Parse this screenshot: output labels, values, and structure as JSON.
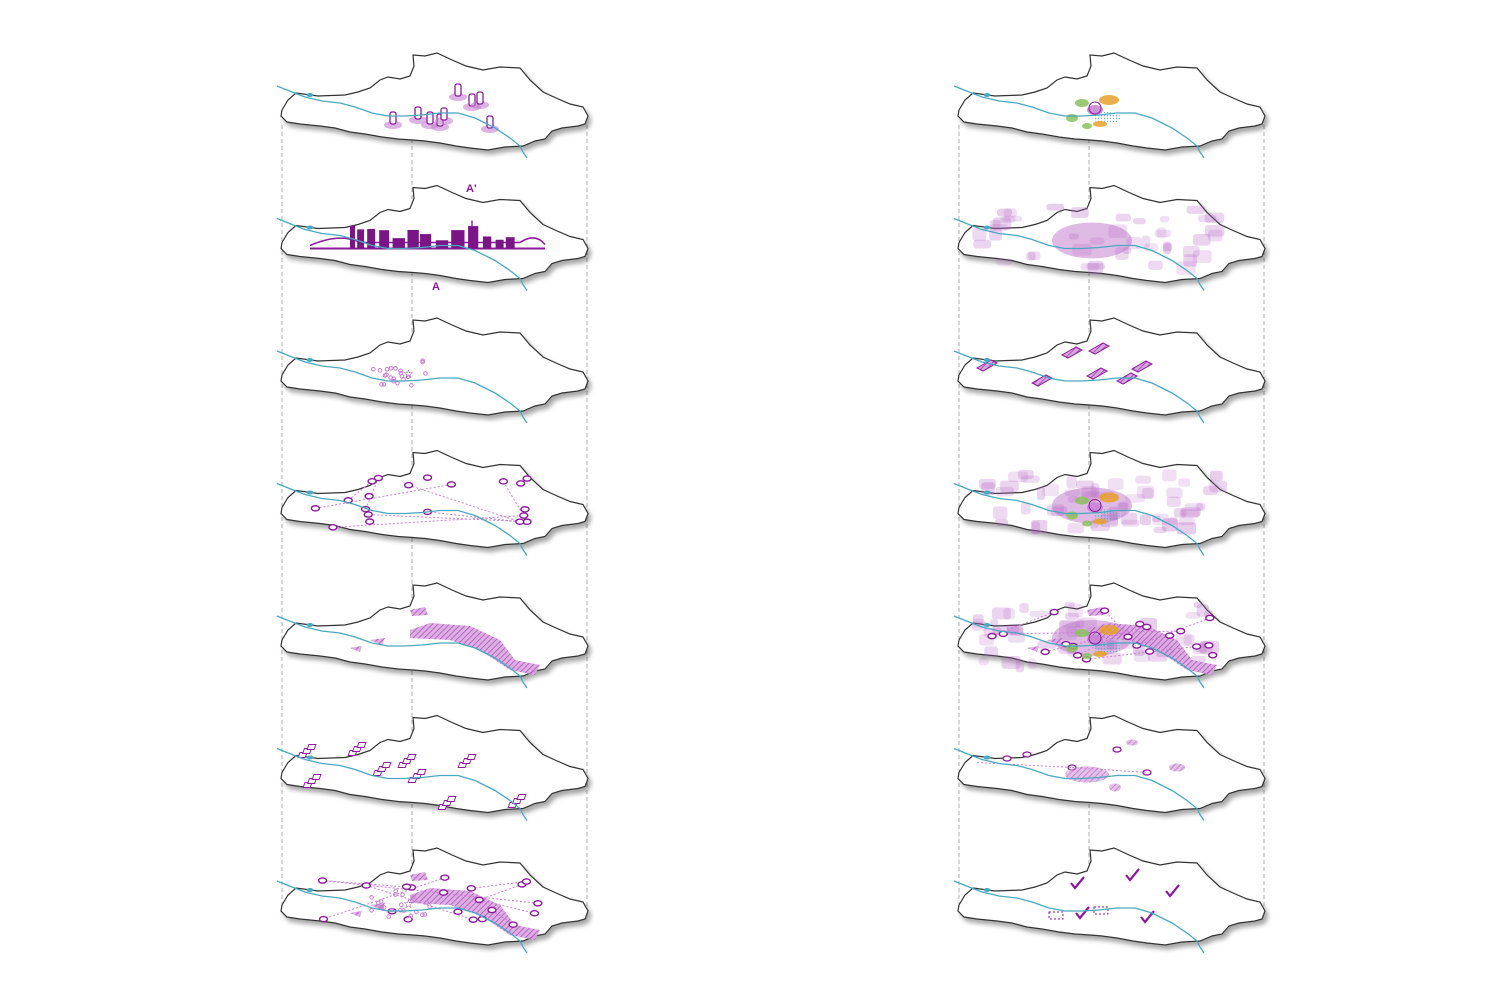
{
  "section_labels": {
    "start": "A",
    "end": "A'"
  },
  "colors": {
    "outline": "#333333",
    "river": "#4aa8c0",
    "accent": "#8a1a9a",
    "accent_light": "#c77fd2",
    "accent_haze": "#b565c4",
    "orange": "#e6a02a",
    "green": "#8bbf5a",
    "guide": "#999999"
  },
  "columns": [
    {
      "maps": 7
    },
    {
      "maps": 7
    }
  ]
}
